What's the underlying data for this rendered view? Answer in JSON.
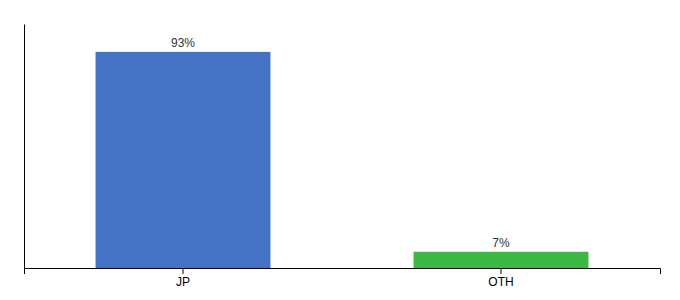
{
  "chart_data": {
    "type": "bar",
    "categories": [
      "JP",
      "OTH"
    ],
    "values": [
      93,
      7
    ],
    "value_labels": [
      "93%",
      "7%"
    ],
    "colors": [
      "#4472c4",
      "#3cb944"
    ],
    "ylim": [
      0,
      105
    ],
    "data_labels": true,
    "tick_labels": "x"
  }
}
